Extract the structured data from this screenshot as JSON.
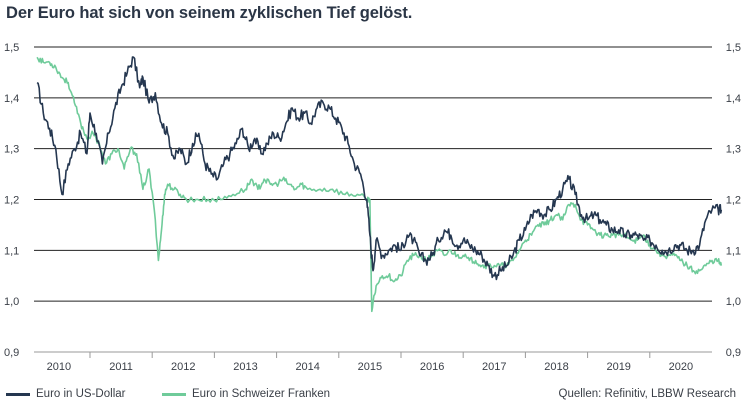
{
  "title": "Der Euro hat sich von seinem zyklischen Tief gelöst.",
  "source": "Quellen: Refinitiv, LBBW Research",
  "colors": {
    "usd": "#253750",
    "chf": "#6fcb9a",
    "grid": "#222222",
    "axis": "#9a9a9a",
    "text": "#3a3f47"
  },
  "chart_data": {
    "type": "line",
    "title": "Der Euro hat sich von seinem zyklischen Tief gelöst.",
    "xlabel": "",
    "ylabel": "",
    "xlim": [
      2009.6,
      2020.5
    ],
    "ylim": [
      0.9,
      1.5
    ],
    "yticks": [
      "0,9",
      "1,0",
      "1,1",
      "1,2",
      "1,3",
      "1,4",
      "1,5"
    ],
    "ytick_values": [
      0.9,
      1.0,
      1.1,
      1.2,
      1.3,
      1.4,
      1.5
    ],
    "xticks": [
      "2010",
      "2011",
      "2012",
      "2013",
      "2014",
      "2015",
      "2016",
      "2017",
      "2018",
      "2019",
      "2020"
    ],
    "xtick_values": [
      2010.0,
      2011.0,
      2012.0,
      2013.0,
      2014.0,
      2015.0,
      2016.0,
      2017.0,
      2018.0,
      2019.0,
      2020.0
    ],
    "legend_position": "bottom-left",
    "series": [
      {
        "name": "Euro in US-Dollar",
        "color": "#253750",
        "x": [
          2009.65,
          2009.75,
          2009.85,
          2009.95,
          2010.05,
          2010.15,
          2010.25,
          2010.35,
          2010.45,
          2010.5,
          2010.6,
          2010.7,
          2010.8,
          2010.9,
          2011.0,
          2011.1,
          2011.2,
          2011.3,
          2011.35,
          2011.45,
          2011.55,
          2011.65,
          2011.75,
          2011.85,
          2011.95,
          2012.05,
          2012.15,
          2012.25,
          2012.35,
          2012.45,
          2012.55,
          2012.65,
          2012.75,
          2012.85,
          2012.95,
          2013.05,
          2013.15,
          2013.25,
          2013.35,
          2013.45,
          2013.55,
          2013.65,
          2013.75,
          2013.85,
          2013.95,
          2014.05,
          2014.15,
          2014.25,
          2014.35,
          2014.45,
          2014.55,
          2014.65,
          2014.75,
          2014.85,
          2014.95,
          2015.0,
          2015.05,
          2015.1,
          2015.2,
          2015.3,
          2015.4,
          2015.5,
          2015.6,
          2015.7,
          2015.8,
          2015.9,
          2016.0,
          2016.1,
          2016.2,
          2016.3,
          2016.4,
          2016.5,
          2016.6,
          2016.7,
          2016.8,
          2016.9,
          2017.0,
          2017.1,
          2017.2,
          2017.3,
          2017.4,
          2017.5,
          2017.6,
          2017.7,
          2017.8,
          2017.9,
          2018.0,
          2018.1,
          2018.2,
          2018.3,
          2018.4,
          2018.5,
          2018.6,
          2018.7,
          2018.8,
          2018.9,
          2019.0,
          2019.1,
          2019.2,
          2019.3,
          2019.4,
          2019.5,
          2019.6,
          2019.7,
          2019.8,
          2019.9,
          2020.0,
          2020.1,
          2020.2,
          2020.3,
          2020.4,
          2020.5,
          2020.6,
          2020.65
        ],
        "values": [
          1.43,
          1.37,
          1.34,
          1.3,
          1.21,
          1.27,
          1.3,
          1.33,
          1.29,
          1.37,
          1.33,
          1.27,
          1.33,
          1.38,
          1.42,
          1.45,
          1.48,
          1.42,
          1.44,
          1.39,
          1.41,
          1.35,
          1.33,
          1.28,
          1.3,
          1.27,
          1.31,
          1.33,
          1.27,
          1.25,
          1.24,
          1.27,
          1.29,
          1.31,
          1.34,
          1.3,
          1.32,
          1.29,
          1.31,
          1.33,
          1.32,
          1.35,
          1.38,
          1.36,
          1.37,
          1.35,
          1.38,
          1.39,
          1.38,
          1.36,
          1.34,
          1.31,
          1.27,
          1.25,
          1.2,
          1.13,
          1.06,
          1.12,
          1.09,
          1.1,
          1.11,
          1.1,
          1.13,
          1.12,
          1.09,
          1.08,
          1.09,
          1.12,
          1.14,
          1.13,
          1.11,
          1.12,
          1.11,
          1.1,
          1.09,
          1.07,
          1.05,
          1.06,
          1.07,
          1.09,
          1.12,
          1.14,
          1.17,
          1.18,
          1.17,
          1.18,
          1.2,
          1.22,
          1.24,
          1.21,
          1.17,
          1.16,
          1.17,
          1.16,
          1.15,
          1.14,
          1.14,
          1.13,
          1.13,
          1.13,
          1.12,
          1.12,
          1.11,
          1.1,
          1.1,
          1.11,
          1.11,
          1.1,
          1.1,
          1.11,
          1.16,
          1.18,
          1.18,
          1.18
        ]
      },
      {
        "name": "Euro in Schweizer Franken",
        "color": "#6fcb9a",
        "x": [
          2009.65,
          2009.75,
          2009.85,
          2009.95,
          2010.05,
          2010.15,
          2010.25,
          2010.35,
          2010.45,
          2010.55,
          2010.65,
          2010.75,
          2010.85,
          2010.95,
          2011.05,
          2011.15,
          2011.25,
          2011.35,
          2011.45,
          2011.55,
          2011.6,
          2011.65,
          2011.7,
          2011.75,
          2011.85,
          2011.95,
          2012.05,
          2012.2,
          2012.4,
          2012.6,
          2012.8,
          2013.0,
          2013.1,
          2013.2,
          2013.3,
          2013.4,
          2013.5,
          2013.6,
          2013.7,
          2013.8,
          2013.9,
          2014.0,
          2014.2,
          2014.4,
          2014.6,
          2014.8,
          2014.95,
          2015.0,
          2015.03,
          2015.1,
          2015.2,
          2015.3,
          2015.4,
          2015.5,
          2015.6,
          2015.7,
          2015.8,
          2015.9,
          2016.0,
          2016.1,
          2016.2,
          2016.3,
          2016.4,
          2016.5,
          2016.6,
          2016.7,
          2016.8,
          2016.9,
          2017.0,
          2017.1,
          2017.2,
          2017.3,
          2017.4,
          2017.5,
          2017.6,
          2017.7,
          2017.8,
          2017.9,
          2018.0,
          2018.1,
          2018.2,
          2018.3,
          2018.4,
          2018.5,
          2018.6,
          2018.7,
          2018.8,
          2018.9,
          2019.0,
          2019.1,
          2019.2,
          2019.3,
          2019.4,
          2019.5,
          2019.6,
          2019.7,
          2019.8,
          2019.9,
          2020.0,
          2020.1,
          2020.2,
          2020.3,
          2020.4,
          2020.5,
          2020.6,
          2020.65
        ],
        "values": [
          1.48,
          1.47,
          1.47,
          1.46,
          1.44,
          1.43,
          1.39,
          1.35,
          1.32,
          1.33,
          1.31,
          1.27,
          1.29,
          1.3,
          1.26,
          1.3,
          1.29,
          1.22,
          1.26,
          1.16,
          1.08,
          1.14,
          1.21,
          1.23,
          1.22,
          1.21,
          1.2,
          1.2,
          1.2,
          1.2,
          1.21,
          1.22,
          1.24,
          1.22,
          1.24,
          1.23,
          1.23,
          1.24,
          1.23,
          1.22,
          1.23,
          1.22,
          1.22,
          1.22,
          1.21,
          1.21,
          1.2,
          1.2,
          0.98,
          1.03,
          1.05,
          1.05,
          1.04,
          1.05,
          1.08,
          1.09,
          1.09,
          1.08,
          1.09,
          1.1,
          1.09,
          1.1,
          1.09,
          1.09,
          1.08,
          1.08,
          1.07,
          1.07,
          1.07,
          1.07,
          1.07,
          1.08,
          1.1,
          1.12,
          1.13,
          1.15,
          1.15,
          1.16,
          1.17,
          1.16,
          1.19,
          1.19,
          1.16,
          1.15,
          1.14,
          1.13,
          1.13,
          1.13,
          1.13,
          1.13,
          1.12,
          1.12,
          1.13,
          1.11,
          1.1,
          1.09,
          1.09,
          1.09,
          1.08,
          1.07,
          1.06,
          1.06,
          1.07,
          1.08,
          1.08,
          1.07
        ]
      }
    ]
  }
}
